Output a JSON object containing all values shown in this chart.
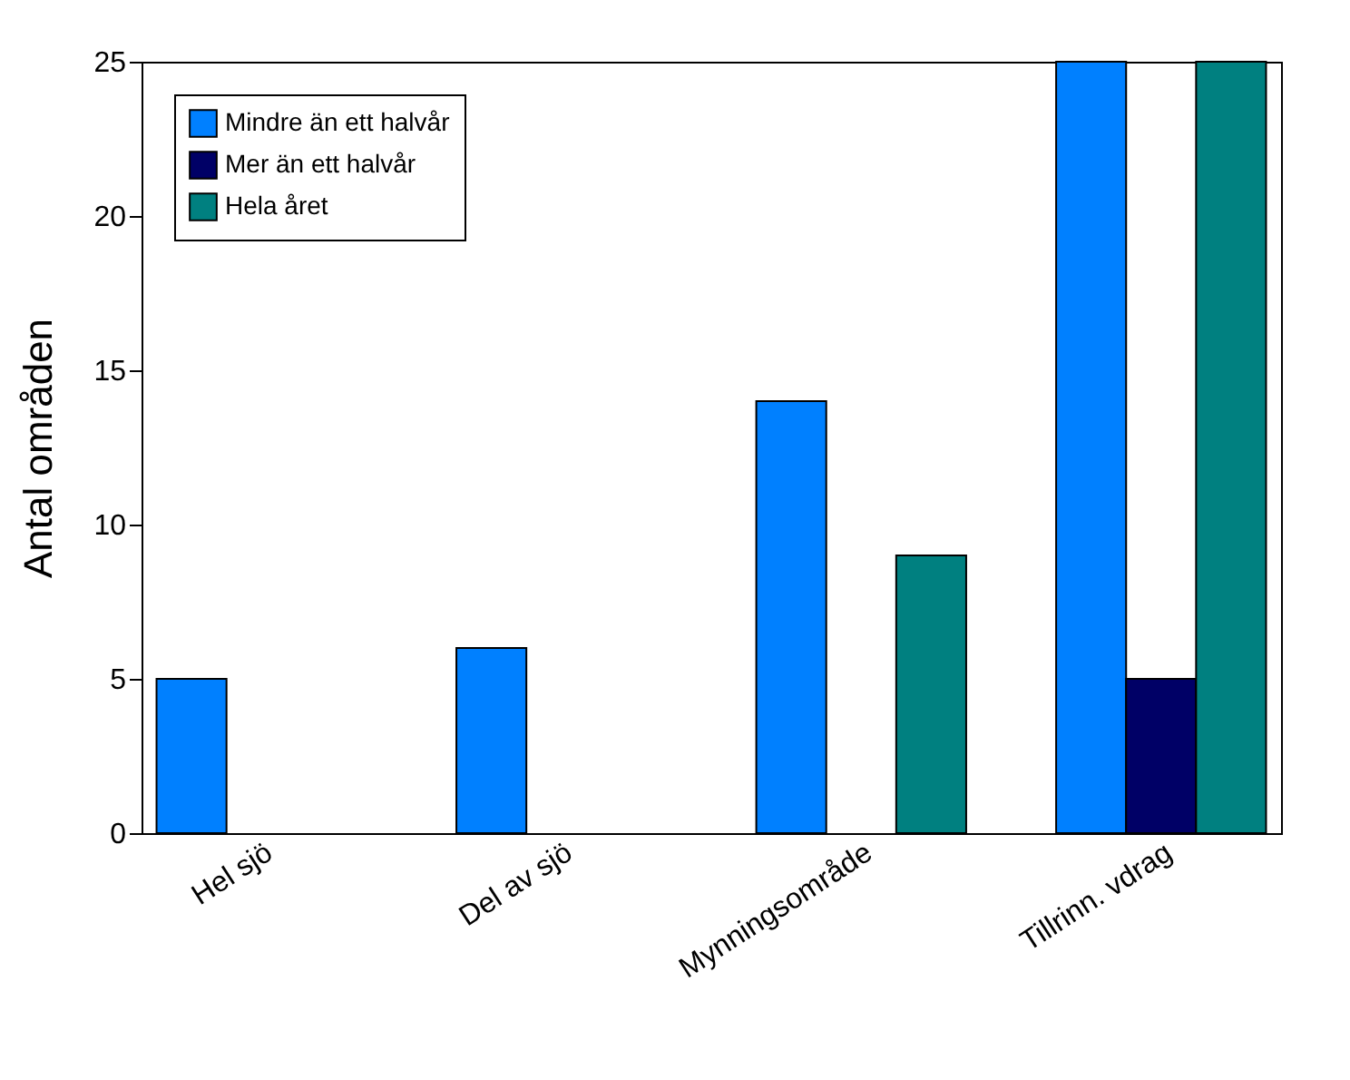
{
  "chart_data": {
    "type": "bar",
    "ylabel": "Antal områden",
    "categories": [
      "Hel sjö",
      "Del av sjö",
      "Mynningsområde",
      "Tillrinn. vdrag"
    ],
    "series": [
      {
        "name": "Mindre än ett halvår",
        "color": "#0080ff",
        "values": [
          5,
          6,
          14,
          25
        ]
      },
      {
        "name": "Mer än ett halvår",
        "color": "#000066",
        "values": [
          null,
          null,
          null,
          5
        ]
      },
      {
        "name": "Hela året",
        "color": "#008080",
        "values": [
          null,
          null,
          9,
          25
        ]
      }
    ],
    "ylim": [
      0,
      25
    ],
    "yticks": [
      0,
      5,
      10,
      15,
      20,
      25
    ],
    "legend": "top left",
    "grid": false
  }
}
